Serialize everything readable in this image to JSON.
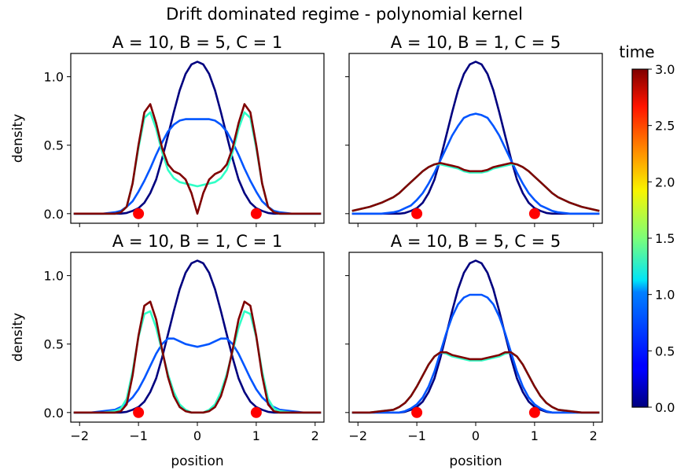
{
  "chart_data": {
    "type": "line",
    "suptitle": "Drift dominated regime - polynomial kernel",
    "xlabel": "position",
    "ylabel": "density",
    "xlim": [
      -2.15,
      2.15
    ],
    "ylim": [
      -0.07,
      1.17
    ],
    "x_ticks": [
      -2,
      -1,
      0,
      1,
      2
    ],
    "x_tick_labels": [
      "−2",
      "−1",
      "0",
      "1",
      "2"
    ],
    "y_ticks": [
      0.0,
      0.5,
      1.0
    ],
    "y_tick_labels": [
      "0.0",
      "0.5",
      "1.0"
    ],
    "colorbar": {
      "label": "time",
      "colormap": "jet",
      "range": [
        0.0,
        3.0
      ],
      "ticks": [
        0.0,
        0.5,
        1.0,
        1.5,
        2.0,
        2.5,
        3.0
      ],
      "tick_labels": [
        "0.0",
        "0.5",
        "1.0",
        "1.5",
        "2.0",
        "2.5",
        "3.0"
      ]
    },
    "markers": {
      "x": [
        -1,
        1
      ],
      "y": [
        0,
        0
      ],
      "color": "#ff0000"
    },
    "x": [
      -2.1,
      -1.8,
      -1.6,
      -1.4,
      -1.3,
      -1.2,
      -1.1,
      -1.0,
      -0.9,
      -0.8,
      -0.7,
      -0.6,
      -0.5,
      -0.4,
      -0.3,
      -0.2,
      -0.1,
      0.0,
      0.1,
      0.2,
      0.3,
      0.4,
      0.5,
      0.6,
      0.7,
      0.8,
      0.9,
      1.0,
      1.1,
      1.2,
      1.3,
      1.4,
      1.6,
      1.8,
      2.1
    ],
    "panels": [
      {
        "title": "A = 10, B = 5, C = 1",
        "series": [
          {
            "time": 0.0,
            "color": "#00007f",
            "values": [
              0,
              0,
              0,
              0,
              0,
              0.005,
              0.02,
              0.04,
              0.08,
              0.15,
              0.25,
              0.4,
              0.57,
              0.74,
              0.9,
              1.02,
              1.09,
              1.11,
              1.09,
              1.02,
              0.9,
              0.74,
              0.57,
              0.4,
              0.25,
              0.15,
              0.08,
              0.04,
              0.02,
              0.005,
              0,
              0,
              0,
              0,
              0
            ]
          },
          {
            "time": 0.5,
            "color": "#0055ff",
            "values": [
              0,
              0,
              0,
              0.01,
              0.02,
              0.05,
              0.09,
              0.16,
              0.24,
              0.33,
              0.43,
              0.52,
              0.6,
              0.65,
              0.68,
              0.69,
              0.69,
              0.69,
              0.69,
              0.69,
              0.68,
              0.65,
              0.6,
              0.52,
              0.43,
              0.33,
              0.24,
              0.16,
              0.09,
              0.05,
              0.02,
              0.01,
              0,
              0,
              0
            ]
          },
          {
            "time": 1.0,
            "color": "#30ffc6",
            "values": [
              0,
              0,
              0,
              0,
              0.01,
              0.05,
              0.22,
              0.48,
              0.7,
              0.74,
              0.62,
              0.45,
              0.32,
              0.26,
              0.23,
              0.22,
              0.21,
              0.2,
              0.21,
              0.22,
              0.23,
              0.26,
              0.32,
              0.45,
              0.62,
              0.74,
              0.7,
              0.48,
              0.22,
              0.05,
              0.01,
              0,
              0,
              0,
              0
            ]
          },
          {
            "time": 3.0,
            "color": "#7f0000",
            "values": [
              0,
              0,
              0,
              0,
              0.01,
              0.05,
              0.22,
              0.5,
              0.74,
              0.8,
              0.66,
              0.48,
              0.36,
              0.31,
              0.29,
              0.25,
              0.15,
              0.0,
              0.15,
              0.25,
              0.29,
              0.31,
              0.36,
              0.48,
              0.66,
              0.8,
              0.74,
              0.5,
              0.22,
              0.05,
              0.01,
              0,
              0,
              0,
              0
            ]
          }
        ]
      },
      {
        "title": "A = 10, B = 1, C = 5",
        "series": [
          {
            "time": 0.0,
            "color": "#00007f",
            "values": [
              0,
              0,
              0,
              0,
              0,
              0.005,
              0.02,
              0.04,
              0.08,
              0.15,
              0.25,
              0.4,
              0.57,
              0.74,
              0.9,
              1.02,
              1.09,
              1.11,
              1.09,
              1.02,
              0.9,
              0.74,
              0.57,
              0.4,
              0.25,
              0.15,
              0.08,
              0.04,
              0.02,
              0.005,
              0,
              0,
              0,
              0,
              0
            ]
          },
          {
            "time": 0.5,
            "color": "#0055ff",
            "values": [
              0,
              0,
              0,
              0.01,
              0.02,
              0.04,
              0.06,
              0.1,
              0.15,
              0.22,
              0.3,
              0.39,
              0.48,
              0.57,
              0.64,
              0.7,
              0.72,
              0.73,
              0.72,
              0.7,
              0.64,
              0.57,
              0.48,
              0.39,
              0.3,
              0.22,
              0.15,
              0.1,
              0.06,
              0.04,
              0.02,
              0.01,
              0,
              0,
              0
            ]
          },
          {
            "time": 1.0,
            "color": "#30ffc6",
            "values": [
              0.02,
              0.05,
              0.08,
              0.12,
              0.15,
              0.19,
              0.23,
              0.27,
              0.31,
              0.34,
              0.36,
              0.36,
              0.35,
              0.34,
              0.33,
              0.31,
              0.3,
              0.3,
              0.3,
              0.31,
              0.33,
              0.34,
              0.35,
              0.36,
              0.36,
              0.34,
              0.31,
              0.27,
              0.23,
              0.19,
              0.15,
              0.12,
              0.08,
              0.05,
              0.02
            ]
          },
          {
            "time": 3.0,
            "color": "#7f0000",
            "values": [
              0.02,
              0.05,
              0.08,
              0.12,
              0.15,
              0.19,
              0.23,
              0.27,
              0.31,
              0.34,
              0.36,
              0.37,
              0.36,
              0.35,
              0.34,
              0.32,
              0.31,
              0.31,
              0.31,
              0.32,
              0.34,
              0.35,
              0.36,
              0.37,
              0.36,
              0.34,
              0.31,
              0.27,
              0.23,
              0.19,
              0.15,
              0.12,
              0.08,
              0.05,
              0.02
            ]
          }
        ]
      },
      {
        "title": "A = 10, B = 1, C = 1",
        "series": [
          {
            "time": 0.0,
            "color": "#00007f",
            "values": [
              0,
              0,
              0,
              0,
              0,
              0.005,
              0.02,
              0.04,
              0.08,
              0.15,
              0.25,
              0.4,
              0.57,
              0.74,
              0.9,
              1.02,
              1.09,
              1.11,
              1.09,
              1.02,
              0.9,
              0.74,
              0.57,
              0.4,
              0.25,
              0.15,
              0.08,
              0.04,
              0.02,
              0.005,
              0,
              0,
              0,
              0,
              0
            ]
          },
          {
            "time": 0.5,
            "color": "#0055ff",
            "values": [
              0,
              0,
              0.01,
              0.02,
              0.04,
              0.07,
              0.11,
              0.17,
              0.25,
              0.34,
              0.43,
              0.5,
              0.54,
              0.54,
              0.52,
              0.5,
              0.49,
              0.48,
              0.49,
              0.5,
              0.52,
              0.54,
              0.54,
              0.5,
              0.43,
              0.34,
              0.25,
              0.17,
              0.11,
              0.07,
              0.04,
              0.02,
              0.01,
              0,
              0
            ]
          },
          {
            "time": 1.0,
            "color": "#30ffc6",
            "values": [
              0,
              0,
              0,
              0.01,
              0.03,
              0.1,
              0.3,
              0.55,
              0.72,
              0.74,
              0.62,
              0.45,
              0.28,
              0.15,
              0.06,
              0.02,
              0.0,
              0.0,
              0.0,
              0.02,
              0.06,
              0.15,
              0.28,
              0.45,
              0.62,
              0.74,
              0.72,
              0.55,
              0.3,
              0.1,
              0.03,
              0.01,
              0,
              0,
              0
            ]
          },
          {
            "time": 3.0,
            "color": "#7f0000",
            "values": [
              0,
              0,
              0,
              0,
              0.01,
              0.06,
              0.27,
              0.56,
              0.78,
              0.81,
              0.68,
              0.46,
              0.26,
              0.12,
              0.04,
              0.01,
              0.0,
              0.0,
              0.0,
              0.01,
              0.04,
              0.12,
              0.26,
              0.46,
              0.68,
              0.81,
              0.78,
              0.56,
              0.27,
              0.06,
              0.01,
              0,
              0,
              0,
              0
            ]
          }
        ]
      },
      {
        "title": "A = 10, B = 5, C = 5",
        "series": [
          {
            "time": 0.0,
            "color": "#00007f",
            "values": [
              0,
              0,
              0,
              0,
              0,
              0.005,
              0.02,
              0.04,
              0.08,
              0.15,
              0.25,
              0.4,
              0.57,
              0.74,
              0.9,
              1.02,
              1.09,
              1.11,
              1.09,
              1.02,
              0.9,
              0.74,
              0.57,
              0.4,
              0.25,
              0.15,
              0.08,
              0.04,
              0.02,
              0.005,
              0,
              0,
              0,
              0,
              0
            ]
          },
          {
            "time": 0.5,
            "color": "#0055ff",
            "values": [
              0,
              0,
              0,
              0,
              0,
              0.01,
              0.03,
              0.06,
              0.11,
              0.19,
              0.3,
              0.44,
              0.58,
              0.7,
              0.79,
              0.84,
              0.86,
              0.86,
              0.86,
              0.84,
              0.79,
              0.7,
              0.58,
              0.44,
              0.3,
              0.19,
              0.11,
              0.06,
              0.03,
              0.01,
              0,
              0,
              0,
              0,
              0
            ]
          },
          {
            "time": 1.0,
            "color": "#30ffc6",
            "values": [
              0,
              0,
              0.01,
              0.02,
              0.04,
              0.07,
              0.12,
              0.19,
              0.27,
              0.35,
              0.41,
              0.44,
              0.43,
              0.41,
              0.4,
              0.39,
              0.38,
              0.38,
              0.38,
              0.39,
              0.4,
              0.41,
              0.43,
              0.44,
              0.41,
              0.35,
              0.27,
              0.19,
              0.12,
              0.07,
              0.04,
              0.02,
              0.01,
              0,
              0
            ]
          },
          {
            "time": 3.0,
            "color": "#7f0000",
            "values": [
              0,
              0,
              0.01,
              0.02,
              0.04,
              0.07,
              0.12,
              0.19,
              0.27,
              0.35,
              0.41,
              0.44,
              0.44,
              0.42,
              0.41,
              0.4,
              0.39,
              0.39,
              0.39,
              0.4,
              0.41,
              0.42,
              0.44,
              0.44,
              0.41,
              0.35,
              0.27,
              0.19,
              0.12,
              0.07,
              0.04,
              0.02,
              0.01,
              0,
              0
            ]
          }
        ]
      }
    ]
  }
}
